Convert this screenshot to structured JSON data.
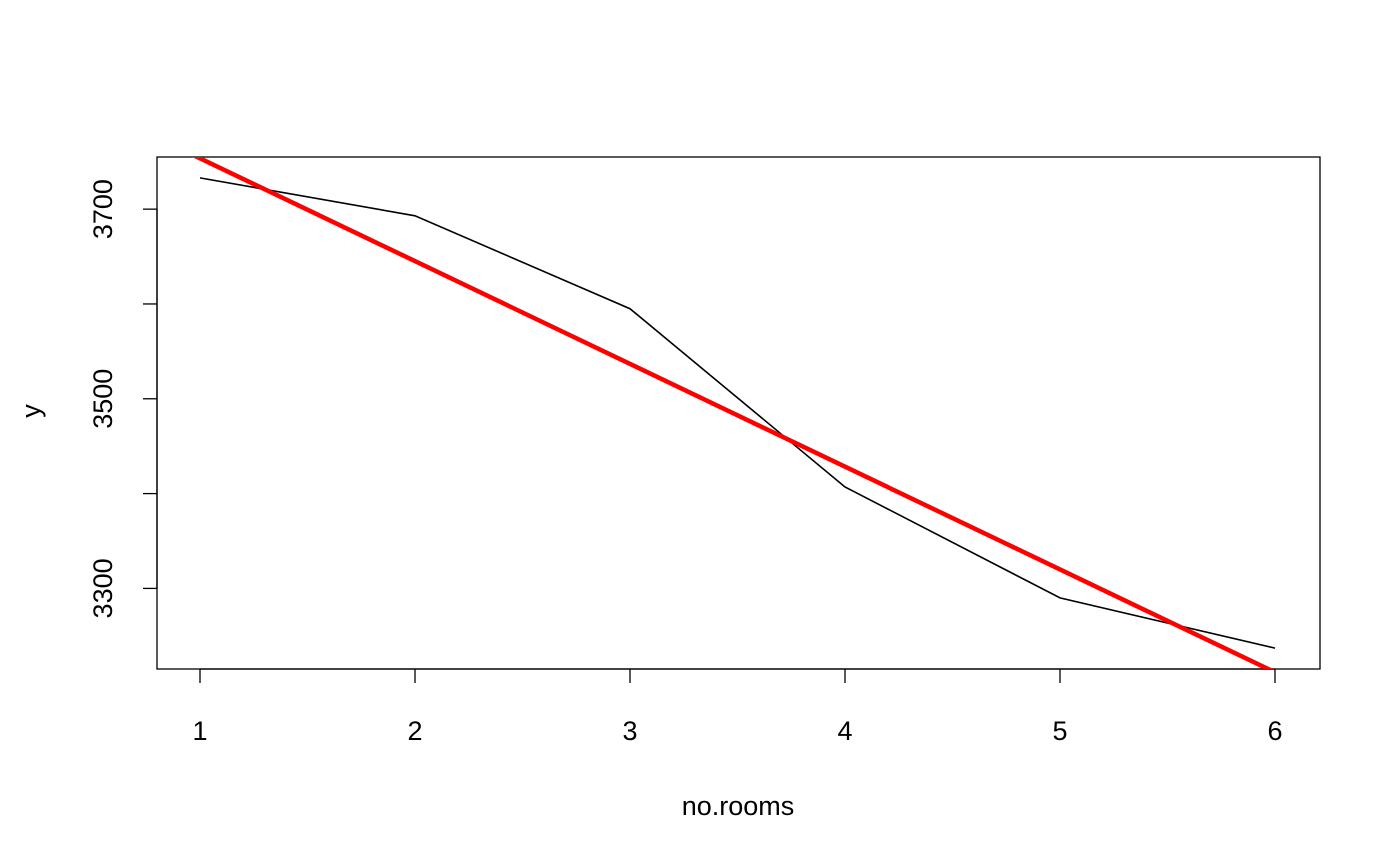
{
  "chart_data": {
    "type": "line",
    "title": "",
    "xlabel": "no.rooms",
    "ylabel": "y",
    "x": [
      1,
      2,
      3,
      4,
      5,
      6
    ],
    "series": [
      {
        "values": [
          3733,
          3693,
          3595,
          3407,
          3290,
          3237
        ],
        "color": "#000000"
      }
    ],
    "fit_line": {
      "intercept": 3862,
      "slope": -108.4,
      "color": "#ff0000"
    },
    "xlim": [
      1,
      6
    ],
    "ylim": [
      3215,
      3755
    ],
    "x_ticks": [
      "1",
      "2",
      "3",
      "4",
      "5",
      "6"
    ],
    "y_ticks": [
      3300,
      3400,
      3500,
      3600,
      3700
    ],
    "y_tick_labels": [
      "3300",
      "",
      "3500",
      "",
      "3700"
    ],
    "grid": false,
    "legend": "none"
  }
}
